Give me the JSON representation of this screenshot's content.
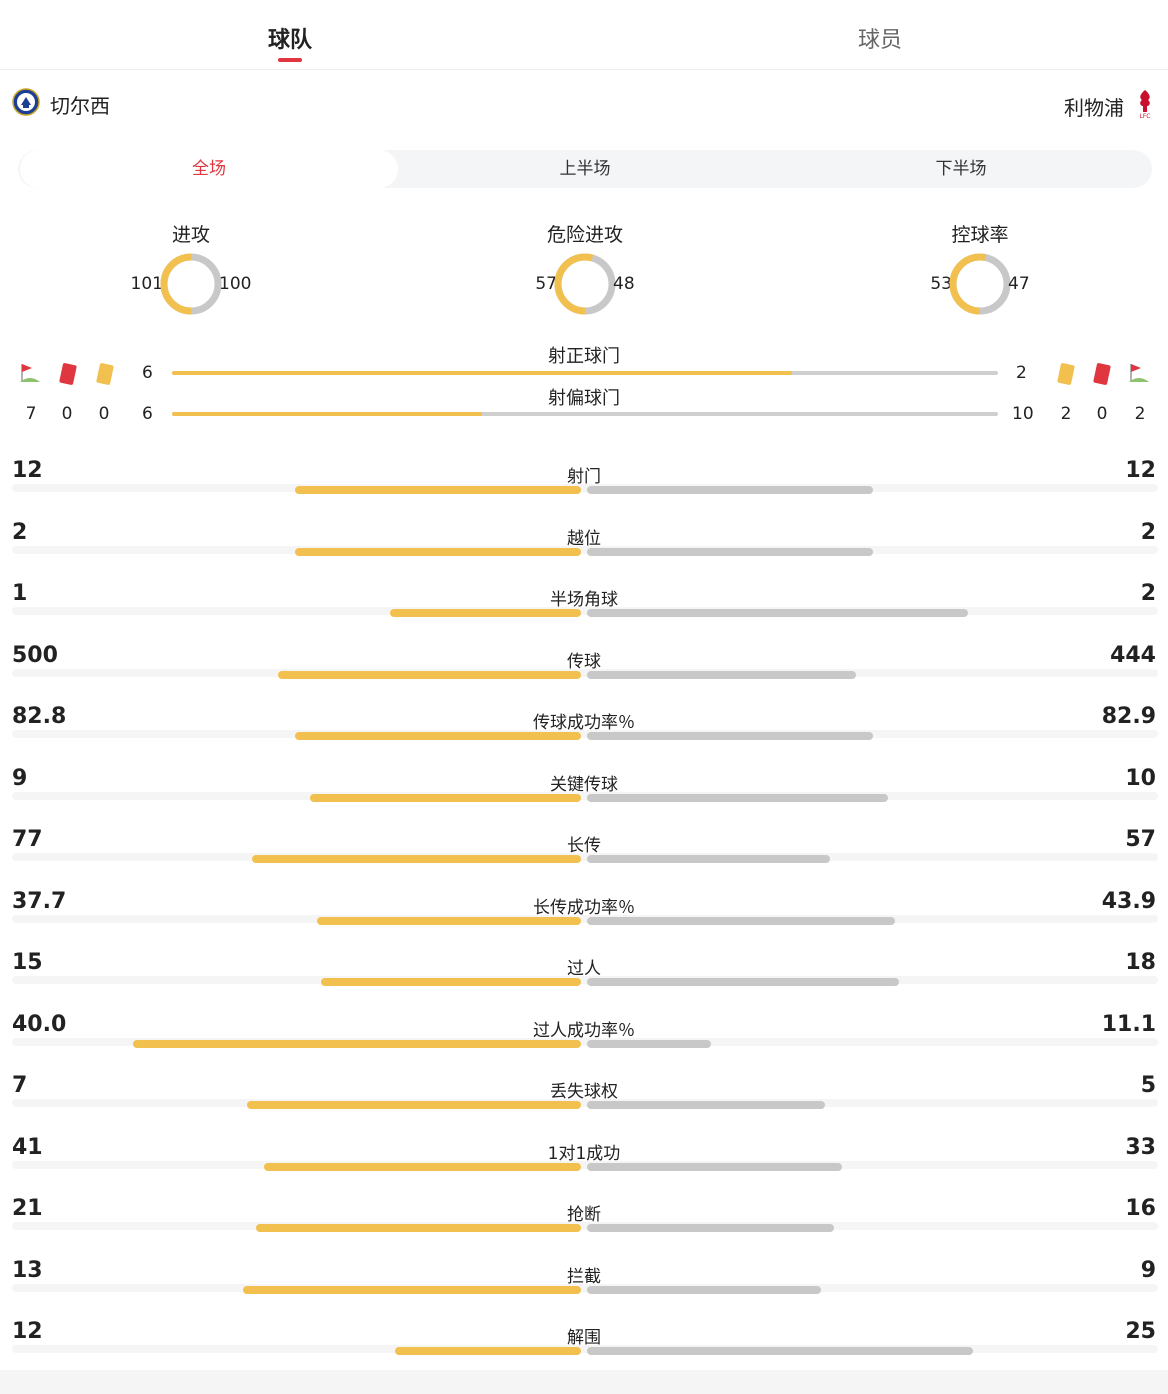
{
  "tabs": [
    {
      "label": "球队",
      "active": true
    },
    {
      "label": "球员",
      "active": false
    }
  ],
  "teams": {
    "home": {
      "name": "切尔西",
      "icon": "chelsea-crest-icon"
    },
    "away": {
      "name": "利物浦",
      "icon": "liverpool-crest-icon"
    }
  },
  "periods": [
    {
      "label": "全场",
      "active": true
    },
    {
      "label": "上半场",
      "active": false
    },
    {
      "label": "下半场",
      "active": false
    }
  ],
  "donuts": [
    {
      "title": "进攻",
      "home": "101",
      "away": "100"
    },
    {
      "title": "危险进攻",
      "home": "57",
      "away": "48"
    },
    {
      "title": "控球率",
      "home": "53",
      "away": "47"
    }
  ],
  "shots": {
    "on_target": {
      "title": "射正球门",
      "home": "6",
      "away": "2"
    },
    "off_target": {
      "title": "射偏球门",
      "home": "6",
      "away": "10"
    }
  },
  "discipline": {
    "home": {
      "corners": "7",
      "red": "0",
      "yellow": "0"
    },
    "away": {
      "yellow": "2",
      "red": "0",
      "corners": "2"
    }
  },
  "stats": [
    {
      "label": "射门",
      "home": "12",
      "away": "12"
    },
    {
      "label": "越位",
      "home": "2",
      "away": "2"
    },
    {
      "label": "半场角球",
      "home": "1",
      "away": "2"
    },
    {
      "label": "传球",
      "home": "500",
      "away": "444"
    },
    {
      "label": "传球成功率％",
      "home": "82.8",
      "away": "82.9"
    },
    {
      "label": "关键传球",
      "home": "9",
      "away": "10"
    },
    {
      "label": "长传",
      "home": "77",
      "away": "57"
    },
    {
      "label": "长传成功率％",
      "home": "37.7",
      "away": "43.9"
    },
    {
      "label": "过人",
      "home": "15",
      "away": "18"
    },
    {
      "label": "过人成功率％",
      "home": "40.0",
      "away": "11.1"
    },
    {
      "label": "丢失球权",
      "home": "7",
      "away": "5"
    },
    {
      "label": "1对1成功",
      "home": "41",
      "away": "33"
    },
    {
      "label": "抢断",
      "home": "21",
      "away": "16"
    },
    {
      "label": "拦截",
      "home": "13",
      "away": "9"
    },
    {
      "label": "解围",
      "home": "12",
      "away": "25"
    }
  ],
  "colors": {
    "home": "#f2c04f",
    "away": "#c8c8c8",
    "accent": "#e0363f"
  }
}
